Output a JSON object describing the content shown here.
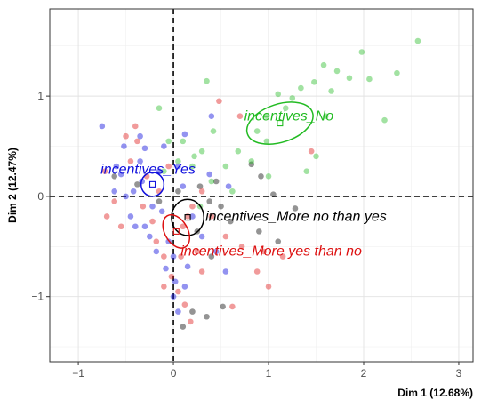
{
  "chart_data": {
    "type": "scatter",
    "xlabel": "Dim 1 (12.68%)",
    "ylabel": "Dim 2 (12.47%)",
    "xlim": [
      -1.3,
      3.15
    ],
    "ylim": [
      -1.65,
      1.87
    ],
    "xticks": [
      -1,
      0,
      1,
      2,
      3
    ],
    "yticks": [
      -1,
      0,
      1
    ],
    "x_tick_labels": [
      "−1",
      "0",
      "1",
      "2",
      "3"
    ],
    "y_tick_labels": [
      "−1",
      "0",
      "1"
    ],
    "grid": true,
    "reference_lines": {
      "x": 0,
      "y": 0,
      "style": "dashed"
    },
    "categories": [
      {
        "label": "incentives_No",
        "color": "#22bb22",
        "center": [
          1.12,
          0.73
        ],
        "ellipse": {
          "rx": 0.36,
          "ry": 0.19,
          "angle_deg": -18
        },
        "points": [
          [
            2.57,
            1.55
          ],
          [
            2.35,
            1.23
          ],
          [
            2.22,
            0.76
          ],
          [
            2.06,
            1.17
          ],
          [
            1.98,
            1.44
          ],
          [
            1.85,
            1.18
          ],
          [
            1.72,
            1.25
          ],
          [
            1.66,
            1.05
          ],
          [
            1.58,
            1.31
          ],
          [
            1.48,
            1.14
          ],
          [
            1.34,
            1.08
          ],
          [
            1.25,
            0.98
          ],
          [
            1.18,
            0.88
          ],
          [
            1.1,
            1.02
          ],
          [
            0.98,
            0.8
          ],
          [
            0.98,
            0.55
          ],
          [
            0.88,
            0.65
          ],
          [
            0.82,
            0.35
          ],
          [
            0.68,
            0.45
          ],
          [
            0.55,
            0.3
          ],
          [
            0.42,
            0.65
          ],
          [
            0.4,
            0.15
          ],
          [
            0.3,
            0.45
          ],
          [
            0.22,
            0.4
          ],
          [
            0.2,
            0.3
          ],
          [
            0.35,
            1.15
          ],
          [
            0.1,
            0.55
          ],
          [
            0.05,
            0.35
          ],
          [
            -0.05,
            0.55
          ],
          [
            -0.15,
            0.88
          ],
          [
            -0.1,
            0.25
          ],
          [
            1.4,
            0.25
          ],
          [
            1.5,
            0.4
          ],
          [
            1.6,
            0.8
          ],
          [
            1.0,
            0.2
          ],
          [
            0.62,
            0.05
          ],
          [
            0.28,
            -0.1
          ]
        ]
      },
      {
        "label": "incentives_Yes",
        "color": "#1010dd",
        "center": [
          -0.22,
          0.12
        ],
        "ellipse": {
          "rx": 0.12,
          "ry": 0.12,
          "angle_deg": 0
        },
        "points": [
          [
            -0.75,
            0.7
          ],
          [
            -0.52,
            0.5
          ],
          [
            -0.55,
            0.22
          ],
          [
            -0.42,
            0.05
          ],
          [
            -0.35,
            0.35
          ],
          [
            -0.33,
            0.15
          ],
          [
            -0.45,
            -0.2
          ],
          [
            -0.3,
            -0.3
          ],
          [
            -0.22,
            -0.1
          ],
          [
            -0.15,
            0.25
          ],
          [
            -0.12,
            -0.15
          ],
          [
            -0.05,
            -0.45
          ],
          [
            0.0,
            -0.6
          ],
          [
            0.02,
            -0.85
          ],
          [
            0.0,
            -1.0
          ],
          [
            0.05,
            -1.15
          ],
          [
            0.12,
            -0.9
          ],
          [
            -0.08,
            -0.72
          ],
          [
            -0.18,
            -0.55
          ],
          [
            -0.25,
            -0.4
          ],
          [
            -0.4,
            -0.3
          ],
          [
            -0.5,
            0.0
          ],
          [
            -0.6,
            0.3
          ],
          [
            -0.3,
            0.48
          ],
          [
            -0.1,
            0.5
          ],
          [
            0.05,
            0.3
          ],
          [
            0.1,
            0.1
          ],
          [
            0.2,
            -0.2
          ],
          [
            0.3,
            -0.4
          ],
          [
            0.45,
            -0.55
          ],
          [
            0.55,
            -0.75
          ],
          [
            0.15,
            -0.7
          ],
          [
            -0.35,
            0.6
          ],
          [
            0.12,
            0.62
          ],
          [
            0.38,
            0.22
          ],
          [
            0.58,
            0.1
          ],
          [
            -0.62,
            0.05
          ],
          [
            0.4,
            0.8
          ]
        ]
      },
      {
        "label": "incentives_More no than yes",
        "color": "#000000",
        "center": [
          0.15,
          -0.21
        ],
        "ellipse": {
          "rx": 0.17,
          "ry": 0.18,
          "angle_deg": 0
        },
        "points": [
          [
            0.82,
            0.32
          ],
          [
            0.92,
            0.2
          ],
          [
            1.05,
            0.02
          ],
          [
            1.28,
            -0.12
          ],
          [
            0.45,
            0.15
          ],
          [
            0.5,
            -0.1
          ],
          [
            0.6,
            -0.25
          ],
          [
            0.38,
            -0.05
          ],
          [
            0.28,
            0.1
          ],
          [
            0.05,
            0.05
          ],
          [
            -0.15,
            -0.05
          ],
          [
            -0.38,
            0.12
          ],
          [
            0.25,
            -0.35
          ],
          [
            0.4,
            -0.6
          ],
          [
            0.35,
            -1.2
          ],
          [
            0.2,
            -1.15
          ],
          [
            0.1,
            -1.3
          ],
          [
            0.52,
            -1.1
          ],
          [
            -0.62,
            0.2
          ],
          [
            0.9,
            -0.35
          ],
          [
            1.1,
            -0.45
          ]
        ]
      },
      {
        "label": "incentives_More yes than no",
        "color": "#dd1111",
        "center": [
          0.03,
          -0.35
        ],
        "ellipse": {
          "rx": 0.12,
          "ry": 0.18,
          "angle_deg": -30
        },
        "points": [
          [
            -0.7,
            -0.2
          ],
          [
            -0.72,
            0.25
          ],
          [
            -0.62,
            -0.05
          ],
          [
            -0.55,
            -0.3
          ],
          [
            -0.5,
            0.6
          ],
          [
            -0.4,
            0.7
          ],
          [
            -0.32,
            -0.1
          ],
          [
            -0.28,
            0.2
          ],
          [
            -0.22,
            -0.25
          ],
          [
            -0.18,
            -0.45
          ],
          [
            -0.1,
            -0.6
          ],
          [
            -0.02,
            -0.8
          ],
          [
            0.05,
            -0.95
          ],
          [
            0.12,
            -1.08
          ],
          [
            0.18,
            -1.25
          ],
          [
            0.08,
            -0.6
          ],
          [
            0.1,
            -0.3
          ],
          [
            0.2,
            -0.1
          ],
          [
            0.3,
            0.05
          ],
          [
            0.4,
            -0.2
          ],
          [
            0.55,
            -0.4
          ],
          [
            0.72,
            -0.5
          ],
          [
            0.88,
            -0.75
          ],
          [
            0.95,
            -0.55
          ],
          [
            1.0,
            -0.9
          ],
          [
            1.15,
            -0.6
          ],
          [
            1.45,
            0.45
          ],
          [
            0.7,
            0.8
          ],
          [
            0.48,
            0.95
          ],
          [
            -0.05,
            0.3
          ],
          [
            -0.45,
            0.35
          ],
          [
            -0.38,
            0.55
          ],
          [
            -0.15,
            0.05
          ],
          [
            0.3,
            -0.75
          ],
          [
            0.62,
            -1.1
          ],
          [
            -0.1,
            -0.9
          ],
          [
            0.25,
            -0.55
          ],
          [
            0.15,
            -0.2
          ]
        ]
      }
    ]
  }
}
